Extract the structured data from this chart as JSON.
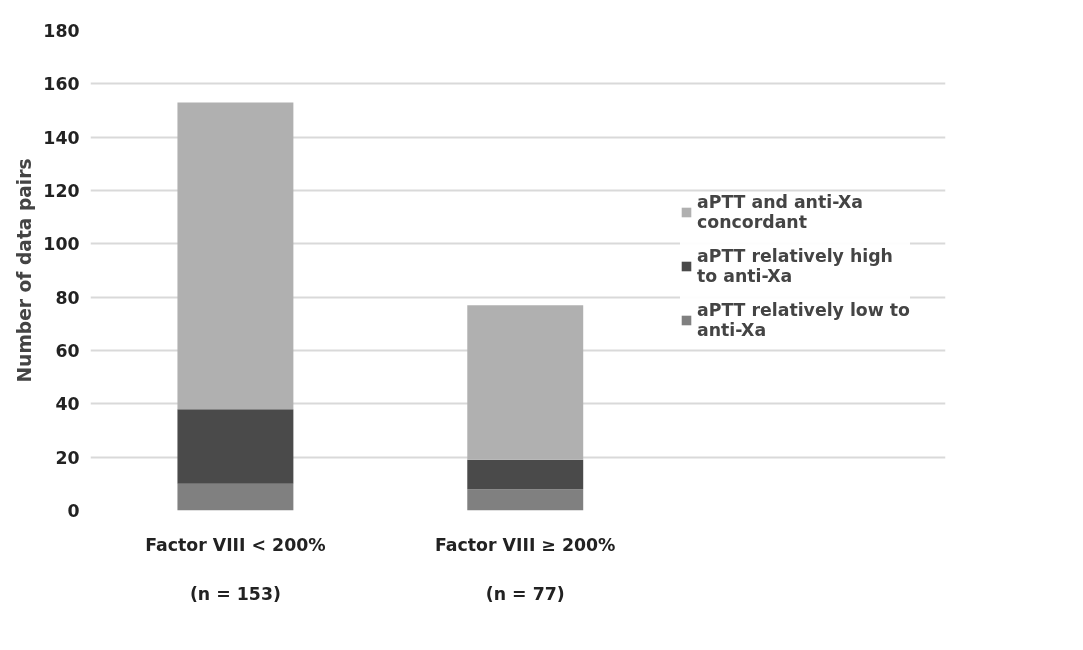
{
  "chart_data": {
    "type": "bar",
    "stacked": true,
    "ylabel": "Number of data pairs",
    "categories": [
      "Factor VIII < 200%",
      "Factor VIII ≥ 200%"
    ],
    "series": [
      {
        "name": "aPTT relatively low to anti-Xa",
        "color": "#808080",
        "values": [
          10,
          8
        ]
      },
      {
        "name": "aPTT relatively high to anti-Xa",
        "color": "#4a4a4a",
        "values": [
          28,
          11
        ]
      },
      {
        "name": "aPTT and anti-Xa concordant",
        "color": "#b0b0b0",
        "values": [
          115,
          58
        ]
      }
    ],
    "annotations": [
      "(n = 153)",
      "(n = 77)"
    ],
    "ylim": [
      0,
      180
    ],
    "yticks": [
      0,
      20,
      40,
      60,
      80,
      100,
      120,
      140,
      160,
      180
    ],
    "grid": "y",
    "legend": "right"
  }
}
